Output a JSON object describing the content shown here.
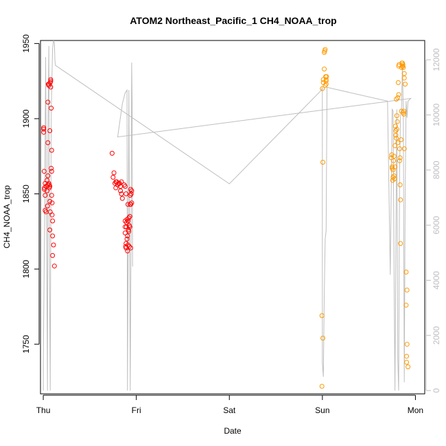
{
  "chart_data": {
    "type": "scatter",
    "title": "ATOM2 Northeast_Pacific_1 CH4_NOAA_trop",
    "xlabel": "Date",
    "ylabel": "CH4_NOAA_trop",
    "x_ticks": [
      "Thu",
      "Fri",
      "Sat",
      "Sun",
      "Mon"
    ],
    "xlim": [
      -0.03,
      4.1
    ],
    "ylim": [
      1717,
      1952
    ],
    "y_ticks": [
      1750,
      1800,
      1850,
      1900,
      1950
    ],
    "y2lim": [
      -120,
      12700
    ],
    "y2_ticks": [
      0,
      2000,
      4000,
      6000,
      8000,
      10000,
      12000
    ],
    "grid": false,
    "legend": "none",
    "colors": {
      "series_red": "#ff0000",
      "series_orange": "#ff9900",
      "altitude_line": "#bebebe"
    },
    "series": [
      {
        "color": "series_red",
        "marker": "open-circle",
        "points": [
          [
            0.005,
            1894
          ],
          [
            0.005,
            1893
          ],
          [
            0.005,
            1891
          ],
          [
            0.01,
            1865
          ],
          [
            0.012,
            1853
          ],
          [
            0.012,
            1854
          ],
          [
            0.02,
            1857
          ],
          [
            0.02,
            1849
          ],
          [
            0.02,
            1839
          ],
          [
            0.03,
            1838
          ],
          [
            0.03,
            1855
          ],
          [
            0.04,
            1852
          ],
          [
            0.04,
            1859
          ],
          [
            0.045,
            1842
          ],
          [
            0.05,
            1856
          ],
          [
            0.05,
            1884
          ],
          [
            0.05,
            1862
          ],
          [
            0.05,
            1911
          ],
          [
            0.055,
            1923
          ],
          [
            0.06,
            1923
          ],
          [
            0.06,
            1922
          ],
          [
            0.06,
            1857
          ],
          [
            0.065,
            1854
          ],
          [
            0.065,
            1856
          ],
          [
            0.07,
            1855
          ],
          [
            0.07,
            1845
          ],
          [
            0.07,
            1826
          ],
          [
            0.07,
            1892
          ],
          [
            0.075,
            1838
          ],
          [
            0.075,
            1924
          ],
          [
            0.08,
            1926
          ],
          [
            0.08,
            1925
          ],
          [
            0.08,
            1921
          ],
          [
            0.085,
            1907
          ],
          [
            0.085,
            1867
          ],
          [
            0.09,
            1865
          ],
          [
            0.09,
            1879
          ],
          [
            0.09,
            1849
          ],
          [
            0.095,
            1844
          ],
          [
            0.095,
            1836
          ],
          [
            0.1,
            1832
          ],
          [
            0.1,
            1822
          ],
          [
            0.1,
            1809
          ],
          [
            0.11,
            1816
          ],
          [
            0.12,
            1802
          ],
          [
            0.74,
            1877
          ],
          [
            0.75,
            1861
          ],
          [
            0.76,
            1864
          ],
          [
            0.77,
            1857
          ],
          [
            0.78,
            1858
          ],
          [
            0.78,
            1854
          ],
          [
            0.79,
            1858
          ],
          [
            0.8,
            1856
          ],
          [
            0.81,
            1857
          ],
          [
            0.82,
            1857
          ],
          [
            0.83,
            1855
          ],
          [
            0.83,
            1852
          ],
          [
            0.84,
            1858
          ],
          [
            0.84,
            1850
          ],
          [
            0.85,
            1847
          ],
          [
            0.87,
            1856
          ],
          [
            0.88,
            1855
          ],
          [
            0.89,
            1850
          ],
          [
            0.88,
            1832
          ],
          [
            0.88,
            1828
          ],
          [
            0.88,
            1824
          ],
          [
            0.885,
            1815
          ],
          [
            0.89,
            1814
          ],
          [
            0.89,
            1817
          ],
          [
            0.895,
            1831
          ],
          [
            0.895,
            1828
          ],
          [
            0.9,
            1833
          ],
          [
            0.9,
            1820
          ],
          [
            0.905,
            1812
          ],
          [
            0.905,
            1822
          ],
          [
            0.91,
            1832
          ],
          [
            0.91,
            1816
          ],
          [
            0.91,
            1843
          ],
          [
            0.915,
            1826
          ],
          [
            0.92,
            1825
          ],
          [
            0.92,
            1834
          ],
          [
            0.925,
            1829
          ],
          [
            0.925,
            1815
          ],
          [
            0.93,
            1835
          ],
          [
            0.93,
            1828
          ],
          [
            0.935,
            1849
          ],
          [
            0.935,
            1843
          ],
          [
            0.94,
            1843
          ],
          [
            0.94,
            1853
          ],
          [
            0.95,
            1852
          ],
          [
            0.95,
            1844
          ],
          [
            0.945,
            1850
          ],
          [
            0.94,
            1814
          ]
        ]
      },
      {
        "color": "series_orange",
        "marker": "open-circle",
        "points": [
          [
            2.995,
            1722
          ],
          [
            2.995,
            1769
          ],
          [
            3.005,
            1754
          ],
          [
            3.005,
            1871
          ],
          [
            3.0,
            1920
          ],
          [
            3.01,
            1924
          ],
          [
            3.01,
            1926
          ],
          [
            3.02,
            1933
          ],
          [
            3.02,
            1944
          ],
          [
            3.025,
            1945
          ],
          [
            3.03,
            1946
          ],
          [
            3.03,
            1922
          ],
          [
            3.035,
            1928
          ],
          [
            3.04,
            1925
          ],
          [
            3.04,
            1926
          ],
          [
            3.045,
            1928
          ],
          [
            3.04,
            1923
          ],
          [
            3.74,
            1874
          ],
          [
            3.745,
            1876
          ],
          [
            3.75,
            1868
          ],
          [
            3.75,
            1867
          ],
          [
            3.755,
            1859
          ],
          [
            3.76,
            1866
          ],
          [
            3.76,
            1861
          ],
          [
            3.765,
            1872
          ],
          [
            3.77,
            1875
          ],
          [
            3.77,
            1862
          ],
          [
            3.775,
            1860
          ],
          [
            3.78,
            1868
          ],
          [
            3.78,
            1882
          ],
          [
            3.785,
            1895
          ],
          [
            3.79,
            1892
          ],
          [
            3.79,
            1889
          ],
          [
            3.795,
            1887
          ],
          [
            3.795,
            1913
          ],
          [
            3.8,
            1902
          ],
          [
            3.8,
            1893
          ],
          [
            3.805,
            1898
          ],
          [
            3.81,
            1884
          ],
          [
            3.81,
            1914
          ],
          [
            3.815,
            1924
          ],
          [
            3.82,
            1916
          ],
          [
            3.82,
            1935
          ],
          [
            3.825,
            1936
          ],
          [
            3.83,
            1872
          ],
          [
            3.83,
            1880
          ],
          [
            3.835,
            1874
          ],
          [
            3.835,
            1856
          ],
          [
            3.84,
            1846
          ],
          [
            3.84,
            1817
          ],
          [
            3.845,
            1886
          ],
          [
            3.85,
            1905
          ],
          [
            3.85,
            1934
          ],
          [
            3.855,
            1937
          ],
          [
            3.86,
            1937
          ],
          [
            3.865,
            1936
          ],
          [
            3.865,
            1935
          ],
          [
            3.87,
            1904
          ],
          [
            3.875,
            1903
          ],
          [
            3.88,
            1880
          ],
          [
            3.88,
            1927
          ],
          [
            3.89,
            1923
          ],
          [
            3.9,
            1798
          ],
          [
            3.9,
            1776
          ],
          [
            3.91,
            1786
          ],
          [
            3.91,
            1750
          ],
          [
            3.92,
            1735
          ],
          [
            3.905,
            1742
          ],
          [
            3.905,
            1738
          ],
          [
            3.86,
            1935
          ],
          [
            3.87,
            1934
          ],
          [
            3.88,
            1930
          ],
          [
            3.875,
            1905
          ]
        ]
      }
    ],
    "altitude_line": {
      "axis": "right",
      "points": [
        [
          0.0,
          0
        ],
        [
          0.0,
          1000
        ],
        [
          0.015,
          6500
        ],
        [
          0.025,
          12100
        ],
        [
          0.035,
          6000
        ],
        [
          0.045,
          0
        ],
        [
          0.05,
          9500
        ],
        [
          0.06,
          12500
        ],
        [
          0.065,
          5000
        ],
        [
          0.075,
          0
        ],
        [
          0.085,
          10000
        ],
        [
          0.1,
          12400
        ],
        [
          0.11,
          12700
        ],
        [
          0.12,
          12600
        ],
        [
          0.125,
          12000
        ],
        [
          0.13,
          11800
        ],
        [
          2.0,
          7500
        ],
        [
          2.99,
          10900
        ],
        [
          3.0,
          11000
        ],
        [
          3.0,
          1000
        ],
        [
          3.01,
          500
        ],
        [
          3.02,
          3500
        ],
        [
          3.03,
          5500
        ],
        [
          3.04,
          5800
        ],
        [
          3.05,
          11000
        ],
        [
          3.7,
          10500
        ],
        [
          3.73,
          4200
        ],
        [
          3.75,
          10200
        ],
        [
          3.76,
          10150
        ],
        [
          3.77,
          4300
        ],
        [
          3.78,
          0
        ],
        [
          3.79,
          5400
        ],
        [
          3.8,
          10200
        ],
        [
          3.81,
          1200
        ],
        [
          3.82,
          0
        ],
        [
          3.83,
          8000
        ],
        [
          3.84,
          10000
        ],
        [
          3.85,
          10200
        ],
        [
          3.86,
          11800
        ],
        [
          3.87,
          10000
        ],
        [
          3.88,
          300
        ],
        [
          3.89,
          7000
        ],
        [
          3.9,
          10500
        ],
        [
          3.91,
          9900
        ],
        [
          3.92,
          10500
        ],
        [
          3.95,
          10600
        ],
        [
          0.8,
          9200
        ],
        [
          0.82,
          9700
        ],
        [
          0.85,
          10400
        ],
        [
          0.88,
          10800
        ],
        [
          0.9,
          10900
        ],
        [
          0.905,
          0
        ],
        [
          0.92,
          10900
        ],
        [
          0.935,
          0
        ],
        [
          0.945,
          7000
        ],
        [
          0.95,
          11900
        ],
        [
          0.955,
          10500
        ],
        [
          0.96,
          4500
        ]
      ]
    }
  }
}
